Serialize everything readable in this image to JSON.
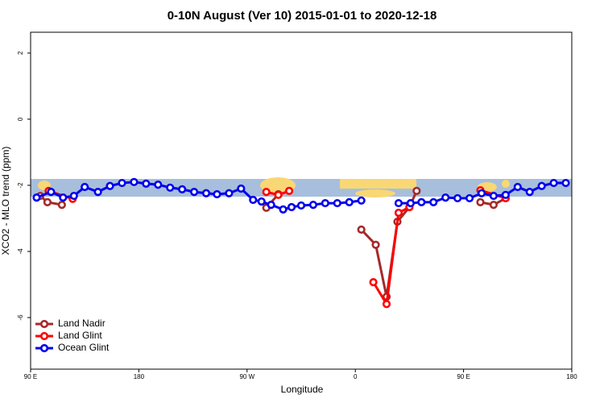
{
  "chart_data": {
    "type": "line",
    "title": "0-10N August (Ver 10)   2015-01-01 to 2020-12-18",
    "x_label": "Longitude",
    "y_label": "XCO2 - MLO trend (ppm)",
    "xlim": [
      90,
      540
    ],
    "ylim": [
      -7.56,
      2.63
    ],
    "xticks": [
      {
        "value": 90,
        "label": "90 E"
      },
      180,
      {
        "value": 270,
        "label": "90 W"
      },
      {
        "value": 360,
        "label": "0"
      },
      {
        "value": 450,
        "label": "90 E"
      },
      {
        "value": 540,
        "label": "180"
      }
    ],
    "yticks": [
      -6,
      -4,
      -2,
      0,
      2
    ],
    "legend": "bottom-left",
    "series": [
      {
        "name": "Land Nadir",
        "color": "#a52a2a",
        "x": [
          98,
          104,
          116,
          null,
          286,
          296,
          null,
          365,
          377,
          386,
          395,
          405,
          411,
          null,
          464,
          475,
          485
        ],
        "values": [
          -2.32,
          -2.51,
          -2.59,
          null,
          -2.68,
          -2.27,
          null,
          -3.34,
          -3.8,
          -5.37,
          -3.1,
          -2.66,
          -2.17,
          null,
          -2.51,
          -2.59,
          -2.39
        ]
      },
      {
        "name": "Land Glint",
        "color": "#ff0000",
        "x": [
          105,
          125,
          null,
          286,
          296,
          305,
          null,
          375,
          386,
          396,
          405,
          null,
          464,
          485
        ],
        "values": [
          -2.17,
          -2.41,
          null,
          -2.2,
          -2.29,
          -2.17,
          null,
          -4.93,
          -5.59,
          -2.83,
          -2.66,
          null,
          -2.15,
          -2.39
        ]
      },
      {
        "name": "Ocean Glint",
        "color": "#0000ee",
        "x": [
          95,
          107,
          117,
          126,
          135,
          146,
          156,
          166,
          176,
          186,
          196,
          206,
          216,
          226,
          236,
          245,
          255,
          265,
          275,
          282,
          290,
          300,
          307,
          315,
          325,
          335,
          345,
          355,
          365,
          null,
          396,
          406,
          415,
          425,
          435,
          445,
          455,
          465,
          475,
          485,
          495,
          505,
          515,
          525,
          535
        ],
        "values": [
          -2.37,
          -2.2,
          -2.37,
          -2.32,
          -2.05,
          -2.2,
          -2.02,
          -1.93,
          -1.9,
          -1.95,
          -1.98,
          -2.07,
          -2.12,
          -2.2,
          -2.24,
          -2.27,
          -2.24,
          -2.1,
          -2.44,
          -2.49,
          -2.59,
          -2.73,
          -2.66,
          -2.61,
          -2.59,
          -2.54,
          -2.54,
          -2.51,
          -2.46,
          null,
          -2.54,
          -2.54,
          -2.51,
          -2.51,
          -2.37,
          -2.39,
          -2.39,
          -2.24,
          -2.32,
          -2.29,
          -2.05,
          -2.2,
          -2.02,
          -1.93,
          -1.93
        ]
      }
    ]
  }
}
